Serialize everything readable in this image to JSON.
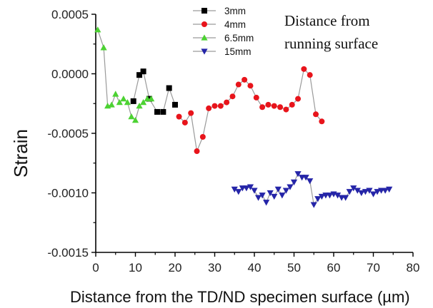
{
  "chart_data": {
    "type": "scatter",
    "xlabel": "Distance from the TD/ND specimen surface (µm)",
    "ylabel": "Strain",
    "xlim": [
      0,
      80
    ],
    "ylim": [
      -0.0015,
      0.0005
    ],
    "xticks": [
      "0",
      "10",
      "20",
      "30",
      "40",
      "50",
      "60",
      "70",
      "80"
    ],
    "yticks": [
      "0.0005",
      "0.0000",
      "-0.0005",
      "-0.0010",
      "-0.0015"
    ],
    "annotation": [
      "Distance from",
      "running surface"
    ],
    "legend_position": "top-center",
    "connector_color": "#9a9a9a",
    "series": [
      {
        "name": "3mm",
        "marker": "square",
        "color": "#000000",
        "points": [
          [
            9.5,
            -0.00023
          ],
          [
            11,
            -1e-05
          ],
          [
            12,
            2e-05
          ],
          [
            13.5,
            -0.00021
          ],
          [
            15.5,
            -0.00032
          ],
          [
            17,
            -0.00032
          ],
          [
            18.5,
            -0.00012
          ],
          [
            20,
            -0.00026
          ]
        ]
      },
      {
        "name": "4mm",
        "marker": "circle",
        "color": "#e8141b",
        "points": [
          [
            21,
            -0.00036
          ],
          [
            22.5,
            -0.00041
          ],
          [
            24,
            -0.00033
          ],
          [
            25.5,
            -0.00065
          ],
          [
            27,
            -0.00053
          ],
          [
            28.5,
            -0.00029
          ],
          [
            30,
            -0.00027
          ],
          [
            31.5,
            -0.00027
          ],
          [
            33,
            -0.00024
          ],
          [
            34.5,
            -0.00019
          ],
          [
            36,
            -9e-05
          ],
          [
            37.5,
            -5e-05
          ],
          [
            39,
            -0.0001
          ],
          [
            40.5,
            -0.0002
          ],
          [
            42,
            -0.00028
          ],
          [
            43.5,
            -0.00026
          ],
          [
            45,
            -0.00027
          ],
          [
            46.5,
            -0.00028
          ],
          [
            48,
            -0.0003
          ],
          [
            49.5,
            -0.00026
          ],
          [
            51,
            -0.00021
          ],
          [
            52.5,
            4e-05
          ],
          [
            54,
            -1e-05
          ],
          [
            55.5,
            -0.00034
          ],
          [
            57,
            -0.0004
          ]
        ]
      },
      {
        "name": "6.5mm",
        "marker": "triangle-up",
        "color": "#4cd232",
        "points": [
          [
            0.5,
            0.00037
          ],
          [
            2,
            0.00022
          ],
          [
            3,
            -0.00027
          ],
          [
            4,
            -0.00026
          ],
          [
            5,
            -0.00017
          ],
          [
            6,
            -0.00024
          ],
          [
            7,
            -0.00021
          ],
          [
            8,
            -0.00024
          ],
          [
            9,
            -0.00036
          ],
          [
            10,
            -0.00039
          ],
          [
            11,
            -0.00027
          ],
          [
            12,
            -0.00024
          ],
          [
            13,
            -0.00021
          ],
          [
            14,
            -0.00021
          ]
        ]
      },
      {
        "name": "15mm",
        "marker": "triangle-down",
        "color": "#2525a8",
        "points": [
          [
            35,
            -0.00097
          ],
          [
            36,
            -0.00099
          ],
          [
            37,
            -0.00096
          ],
          [
            38,
            -0.00096
          ],
          [
            39,
            -0.00095
          ],
          [
            40,
            -0.00098
          ],
          [
            41,
            -0.00104
          ],
          [
            42,
            -0.00102
          ],
          [
            43,
            -0.00108
          ],
          [
            44,
            -0.001
          ],
          [
            45,
            -0.00103
          ],
          [
            46,
            -0.00097
          ],
          [
            47,
            -0.00102
          ],
          [
            48,
            -0.00098
          ],
          [
            49,
            -0.00095
          ],
          [
            50,
            -0.00091
          ],
          [
            51,
            -0.00084
          ],
          [
            52,
            -0.00087
          ],
          [
            53,
            -0.00087
          ],
          [
            54,
            -0.0009
          ],
          [
            55,
            -0.0011
          ],
          [
            56,
            -0.00105
          ],
          [
            57,
            -0.00103
          ],
          [
            58,
            -0.00102
          ],
          [
            59,
            -0.00102
          ],
          [
            60,
            -0.00101
          ],
          [
            61,
            -0.00102
          ],
          [
            62,
            -0.00104
          ],
          [
            63,
            -0.00104
          ],
          [
            64,
            -0.00099
          ],
          [
            65,
            -0.00096
          ],
          [
            66,
            -0.00098
          ],
          [
            67,
            -0.001
          ],
          [
            68,
            -0.00099
          ],
          [
            69,
            -0.00098
          ],
          [
            70,
            -0.00101
          ],
          [
            71,
            -0.00099
          ],
          [
            72,
            -0.00098
          ],
          [
            73,
            -0.00098
          ],
          [
            74,
            -0.00097
          ]
        ]
      }
    ]
  }
}
